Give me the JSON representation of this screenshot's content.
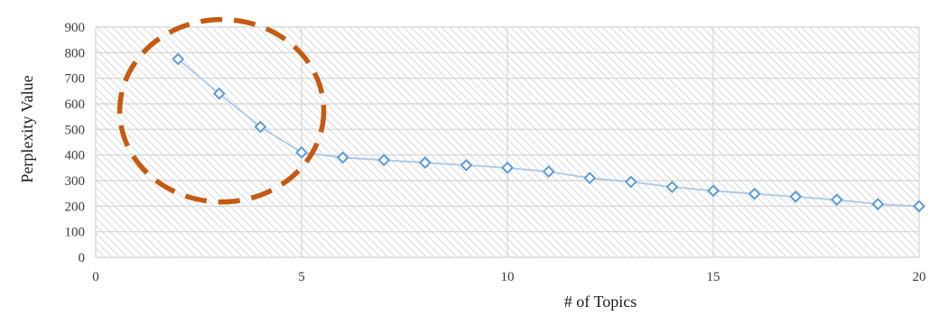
{
  "chart_data": {
    "type": "line",
    "title": "",
    "xlabel": "# of Topics",
    "ylabel": "Perplexity Value",
    "xlim": [
      0,
      20
    ],
    "ylim": [
      0,
      900
    ],
    "x_ticks": [
      0,
      5,
      10,
      15,
      20
    ],
    "y_ticks": [
      0,
      100,
      200,
      300,
      400,
      500,
      600,
      700,
      800,
      900
    ],
    "grid": true,
    "background_pattern": "diagonal-hatch",
    "series": [
      {
        "color": "#5b9bd5",
        "line_color": "#a9c8ea",
        "marker": "diamond-open",
        "x": [
          2,
          3,
          4,
          5,
          6,
          7,
          8,
          9,
          10,
          11,
          12,
          13,
          14,
          15,
          16,
          17,
          18,
          19,
          20
        ],
        "y": [
          775,
          640,
          510,
          410,
          390,
          380,
          370,
          360,
          350,
          335,
          310,
          295,
          275,
          260,
          248,
          237,
          225,
          208,
          200
        ]
      }
    ],
    "annotations": [
      {
        "type": "dashed-circle",
        "color": "#c55a11",
        "center_data": [
          3.5,
          580
        ],
        "note": ""
      }
    ]
  }
}
